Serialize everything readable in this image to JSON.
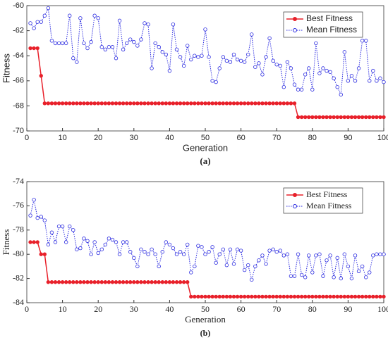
{
  "chart_data": [
    {
      "type": "line",
      "xlabel": "Generation",
      "ylabel": "Fitness",
      "caption": "(a)",
      "xlim": [
        0,
        100
      ],
      "xticks": [
        0,
        10,
        20,
        30,
        40,
        50,
        60,
        70,
        80,
        90,
        100
      ],
      "ylim": [
        -70,
        -60
      ],
      "yticks": [
        -70,
        -68,
        -66,
        -64,
        -62,
        -60
      ],
      "legend": "upper right",
      "x": [
        1,
        2,
        3,
        4,
        5,
        6,
        7,
        8,
        9,
        10,
        11,
        12,
        13,
        14,
        15,
        16,
        17,
        18,
        19,
        20,
        21,
        22,
        23,
        24,
        25,
        26,
        27,
        28,
        29,
        30,
        31,
        32,
        33,
        34,
        35,
        36,
        37,
        38,
        39,
        40,
        41,
        42,
        43,
        44,
        45,
        46,
        47,
        48,
        49,
        50,
        51,
        52,
        53,
        54,
        55,
        56,
        57,
        58,
        59,
        60,
        61,
        62,
        63,
        64,
        65,
        66,
        67,
        68,
        69,
        70,
        71,
        72,
        73,
        74,
        75,
        76,
        77,
        78,
        79,
        80,
        81,
        82,
        83,
        84,
        85,
        86,
        87,
        88,
        89,
        90,
        91,
        92,
        93,
        94,
        95,
        96,
        97,
        98,
        99,
        100
      ],
      "series": [
        {
          "name": "Best Fitness",
          "color": "#e8202a",
          "linestyle": "solid",
          "values": [
            -63.4,
            -63.4,
            -63.4,
            -65.6,
            -67.8,
            -67.8,
            -67.8,
            -67.8,
            -67.8,
            -67.8,
            -67.8,
            -67.8,
            -67.8,
            -67.8,
            -67.8,
            -67.8,
            -67.8,
            -67.8,
            -67.8,
            -67.8,
            -67.8,
            -67.8,
            -67.8,
            -67.8,
            -67.8,
            -67.8,
            -67.8,
            -67.8,
            -67.8,
            -67.8,
            -67.8,
            -67.8,
            -67.8,
            -67.8,
            -67.8,
            -67.8,
            -67.8,
            -67.8,
            -67.8,
            -67.8,
            -67.8,
            -67.8,
            -67.8,
            -67.8,
            -67.8,
            -67.8,
            -67.8,
            -67.8,
            -67.8,
            -67.8,
            -67.8,
            -67.8,
            -67.8,
            -67.8,
            -67.8,
            -67.8,
            -67.8,
            -67.8,
            -67.8,
            -67.8,
            -67.8,
            -67.8,
            -67.8,
            -67.8,
            -67.8,
            -67.8,
            -67.8,
            -67.8,
            -67.8,
            -67.8,
            -67.8,
            -67.8,
            -67.8,
            -67.8,
            -67.8,
            -68.9,
            -68.9,
            -68.9,
            -68.9,
            -68.9,
            -68.9,
            -68.9,
            -68.9,
            -68.9,
            -68.9,
            -68.9,
            -68.9,
            -68.9,
            -68.9,
            -68.9,
            -68.9,
            -68.9,
            -68.9,
            -68.9,
            -68.9,
            -68.9,
            -68.9,
            -68.9,
            -68.9,
            -68.9
          ]
        },
        {
          "name": "Mean Fitness",
          "color": "#2a2ae0",
          "linestyle": "dotted",
          "values": [
            -61.4,
            -61.8,
            -61.3,
            -61.3,
            -60.8,
            -60.2,
            -62.8,
            -63,
            -63,
            -63,
            -63,
            -60.8,
            -64.2,
            -64.5,
            -61,
            -63,
            -63.4,
            -62.9,
            -60.8,
            -61,
            -63.3,
            -63.5,
            -63.3,
            -63.3,
            -64.2,
            -61.2,
            -63.5,
            -63,
            -62.7,
            -62.9,
            -63.2,
            -62.7,
            -61.4,
            -61.5,
            -65,
            -63,
            -63.3,
            -63.7,
            -63.9,
            -65.2,
            -61.5,
            -63.5,
            -64.1,
            -64.8,
            -63.2,
            -64.3,
            -64,
            -64.1,
            -64,
            -61.9,
            -64.1,
            -66,
            -66.1,
            -65,
            -64.1,
            -64.4,
            -64.5,
            -63.9,
            -64.3,
            -64.4,
            -64.5,
            -63.9,
            -62.3,
            -64.9,
            -64.6,
            -65.5,
            -64.1,
            -62.6,
            -64.4,
            -64.7,
            -64.8,
            -66.5,
            -64.5,
            -65,
            -66.3,
            -66.7,
            -66.7,
            -65.5,
            -65,
            -66.7,
            -63,
            -65.4,
            -65,
            -65.2,
            -65.3,
            -65.8,
            -66.5,
            -67.1,
            -63.7,
            -66,
            -65.6,
            -66,
            -65,
            -62.8,
            -62.8,
            -66,
            -65.2,
            -66,
            -65.8,
            -66.1
          ]
        }
      ]
    },
    {
      "type": "line",
      "xlabel": "Generation",
      "ylabel": "Fitness",
      "caption": "(b)",
      "xlim": [
        0,
        100
      ],
      "xticks": [
        0,
        10,
        20,
        30,
        40,
        50,
        60,
        70,
        80,
        90,
        100
      ],
      "ylim": [
        -84,
        -74
      ],
      "yticks": [
        -84,
        -82,
        -80,
        -78,
        -76,
        -74
      ],
      "legend": "upper right",
      "x": [
        1,
        2,
        3,
        4,
        5,
        6,
        7,
        8,
        9,
        10,
        11,
        12,
        13,
        14,
        15,
        16,
        17,
        18,
        19,
        20,
        21,
        22,
        23,
        24,
        25,
        26,
        27,
        28,
        29,
        30,
        31,
        32,
        33,
        34,
        35,
        36,
        37,
        38,
        39,
        40,
        41,
        42,
        43,
        44,
        45,
        46,
        47,
        48,
        49,
        50,
        51,
        52,
        53,
        54,
        55,
        56,
        57,
        58,
        59,
        60,
        61,
        62,
        63,
        64,
        65,
        66,
        67,
        68,
        69,
        70,
        71,
        72,
        73,
        74,
        75,
        76,
        77,
        78,
        79,
        80,
        81,
        82,
        83,
        84,
        85,
        86,
        87,
        88,
        89,
        90,
        91,
        92,
        93,
        94,
        95,
        96,
        97,
        98,
        99,
        100
      ],
      "series": [
        {
          "name": "Best Fitness",
          "color": "#e8202a",
          "linestyle": "solid",
          "values": [
            -79,
            -79,
            -79,
            -80,
            -80,
            -82.3,
            -82.3,
            -82.3,
            -82.3,
            -82.3,
            -82.3,
            -82.3,
            -82.3,
            -82.3,
            -82.3,
            -82.3,
            -82.3,
            -82.3,
            -82.3,
            -82.3,
            -82.3,
            -82.3,
            -82.3,
            -82.3,
            -82.3,
            -82.3,
            -82.3,
            -82.3,
            -82.3,
            -82.3,
            -82.3,
            -82.3,
            -82.3,
            -82.3,
            -82.3,
            -82.3,
            -82.3,
            -82.3,
            -82.3,
            -82.3,
            -82.3,
            -82.3,
            -82.3,
            -82.3,
            -82.3,
            -83.5,
            -83.5,
            -83.5,
            -83.5,
            -83.5,
            -83.5,
            -83.5,
            -83.5,
            -83.5,
            -83.5,
            -83.5,
            -83.5,
            -83.5,
            -83.5,
            -83.5,
            -83.5,
            -83.5,
            -83.5,
            -83.5,
            -83.5,
            -83.5,
            -83.5,
            -83.5,
            -83.5,
            -83.5,
            -83.5,
            -83.5,
            -83.5,
            -83.5,
            -83.5,
            -83.5,
            -83.5,
            -83.5,
            -83.5,
            -83.5,
            -83.5,
            -83.5,
            -83.5,
            -83.5,
            -83.5,
            -83.5,
            -83.5,
            -83.5,
            -83.5,
            -83.5,
            -83.5,
            -83.5,
            -83.5,
            -83.5,
            -83.5,
            -83.5,
            -83.5,
            -83.5,
            -83.5,
            -83.5
          ]
        },
        {
          "name": "Mean Fitness",
          "color": "#2a2ae0",
          "linestyle": "dotted",
          "values": [
            -76.8,
            -75.5,
            -77,
            -76.9,
            -77.2,
            -79.2,
            -78.2,
            -79,
            -77.7,
            -77.7,
            -79,
            -77.7,
            -78,
            -79.6,
            -79.5,
            -78.7,
            -78.9,
            -80,
            -79,
            -79.9,
            -79.6,
            -79.2,
            -78.7,
            -78.8,
            -79,
            -80,
            -79,
            -79,
            -79.8,
            -80.3,
            -81,
            -79.6,
            -79.8,
            -80,
            -79.6,
            -80,
            -81,
            -79.8,
            -79,
            -79.2,
            -79.5,
            -80,
            -79.8,
            -80,
            -79.2,
            -81.5,
            -81,
            -79.3,
            -79.4,
            -80,
            -79.8,
            -79.4,
            -80.7,
            -80,
            -79.6,
            -80.9,
            -79.6,
            -80.8,
            -79.6,
            -79.7,
            -81.3,
            -80.9,
            -82.1,
            -81,
            -80.5,
            -80.1,
            -80.8,
            -79.7,
            -79.6,
            -79.8,
            -79.7,
            -80.1,
            -80,
            -81.8,
            -81.8,
            -80,
            -81.7,
            -81.9,
            -80.1,
            -81.5,
            -80.1,
            -80,
            -81.8,
            -80.5,
            -80.1,
            -81.9,
            -80.3,
            -82,
            -80,
            -81,
            -82,
            -80.1,
            -81.4,
            -81,
            -81.9,
            -81.5,
            -80.1,
            -80,
            -80,
            -80
          ]
        }
      ]
    }
  ]
}
